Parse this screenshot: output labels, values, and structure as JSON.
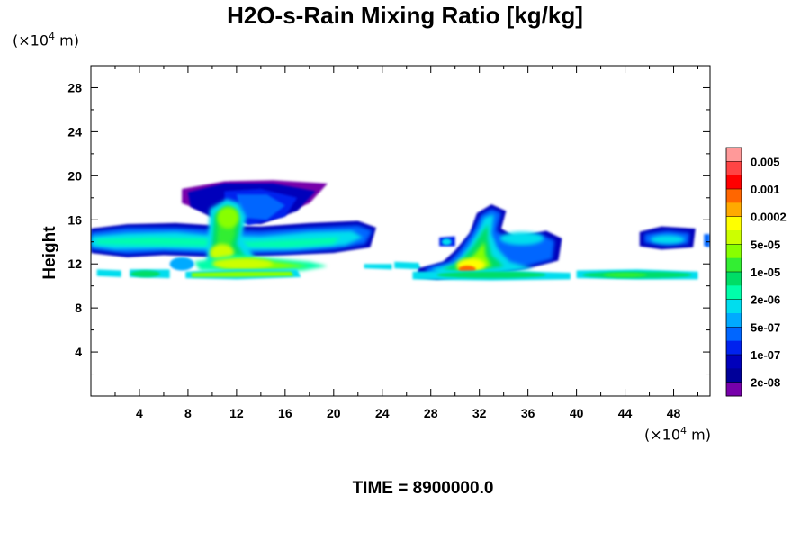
{
  "title": "H2O-s-Rain Mixing Ratio [kg/kg]",
  "unit_y": {
    "prefix": "(×10",
    "exp": "4",
    "suffix": " m)"
  },
  "unit_x": {
    "prefix": "(×10",
    "exp": "4",
    "suffix": " m)"
  },
  "ylabel": "Height",
  "time_label": "TIME = 8900000.0",
  "chart_data": {
    "type": "heatmap",
    "title": "H2O-s-Rain Mixing Ratio [kg/kg]",
    "xlabel": "(×10^4 m)",
    "ylabel": "Height",
    "xlim": [
      0,
      51
    ],
    "ylim": [
      0,
      30
    ],
    "x_ticks": [
      "4",
      "8",
      "12",
      "16",
      "20",
      "24",
      "28",
      "32",
      "36",
      "40",
      "44",
      "48"
    ],
    "y_ticks": [
      "4",
      "8",
      "12",
      "16",
      "20",
      "24",
      "28"
    ],
    "colorbar": {
      "labels": [
        "0.005",
        "0.001",
        "0.0002",
        "5e-05",
        "1e-05",
        "2e-06",
        "5e-07",
        "1e-07",
        "2e-08"
      ],
      "colors": [
        "#ff9999",
        "#ff4444",
        "#ff0000",
        "#ff6600",
        "#ffaa00",
        "#ffff00",
        "#ccff00",
        "#88ff00",
        "#33ee33",
        "#00dd66",
        "#00ffaa",
        "#00ddee",
        "#00aaff",
        "#0066ff",
        "#0022ee",
        "#0000bb",
        "#000099",
        "#7700aa"
      ]
    },
    "footer": "TIME = 8900000.0",
    "structure": [
      {
        "x": [
          0,
          23
        ],
        "y": [
          13,
          16
        ],
        "level": 6
      },
      {
        "x": [
          7,
          21
        ],
        "y": [
          15,
          19.5
        ],
        "level": 1
      },
      {
        "x": [
          9,
          17
        ],
        "y": [
          11,
          17
        ],
        "level": 5
      },
      {
        "x": [
          8,
          17
        ],
        "y": [
          10.5,
          11.5
        ],
        "level": 9
      },
      {
        "x": [
          27,
          39
        ],
        "y": [
          10.5,
          17
        ],
        "level": 4
      },
      {
        "x": [
          40,
          50
        ],
        "y": [
          10.5,
          11.5
        ],
        "level": 8
      },
      {
        "x": [
          45,
          50
        ],
        "y": [
          13.5,
          15
        ],
        "level": 5
      }
    ]
  }
}
